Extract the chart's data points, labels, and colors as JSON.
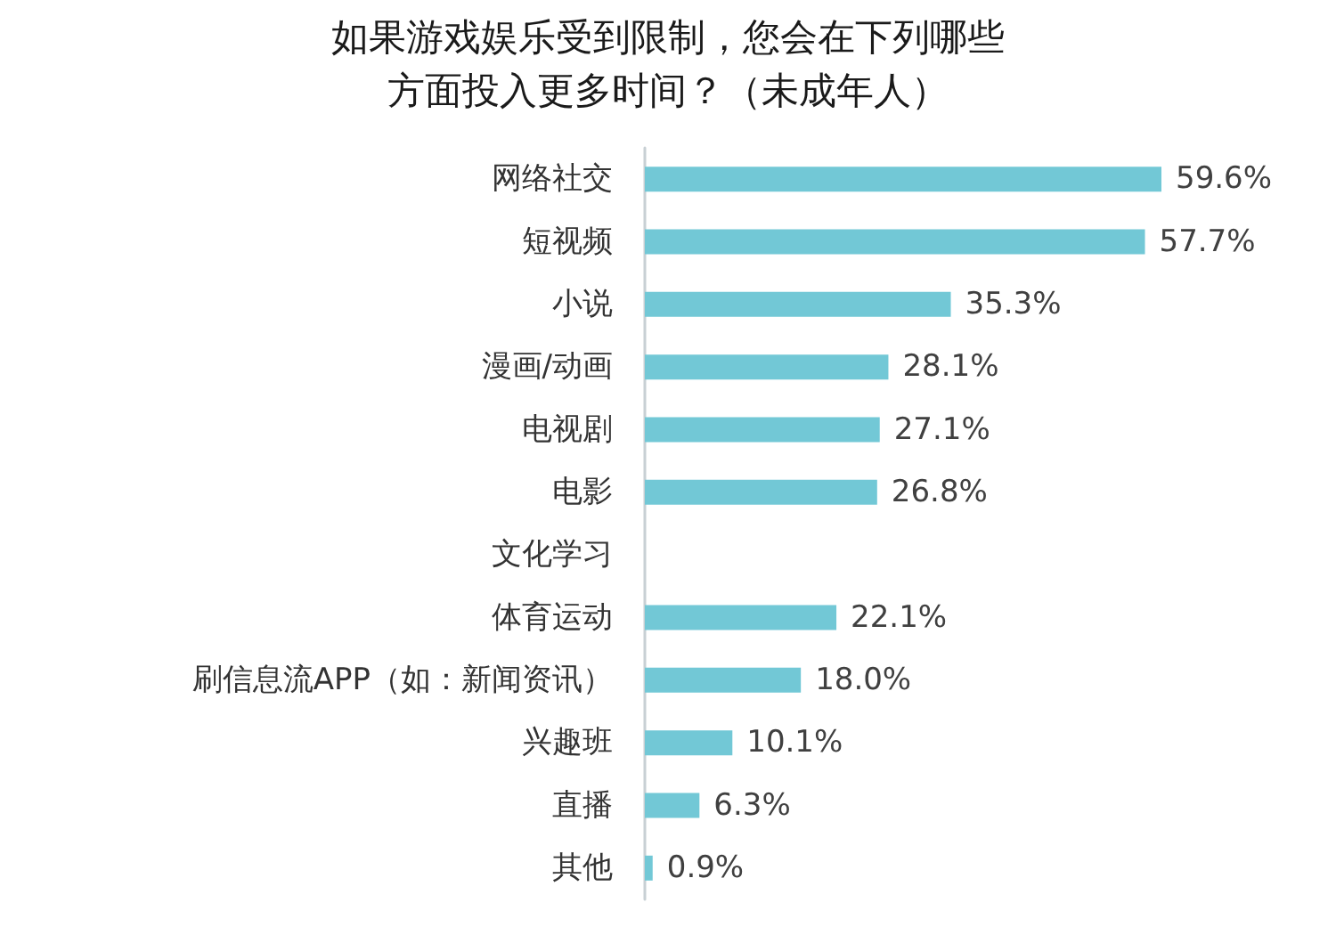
{
  "chart_data": {
    "type": "bar",
    "orientation": "horizontal",
    "title": "如果游戏娱乐受到限制，您会在下列哪些方面投入更多时间？（未成年人）",
    "categories": [
      "网络社交",
      "短视频",
      "小说",
      "漫画/动画",
      "电视剧",
      "电影",
      "文化学习",
      "体育运动",
      "刷信息流APP（如：新闻资讯）",
      "兴趣班",
      "直播",
      "其他"
    ],
    "values": [
      59.6,
      57.7,
      35.3,
      28.1,
      27.1,
      26.8,
      null,
      22.1,
      18.0,
      10.1,
      6.3,
      0.9
    ],
    "value_labels": [
      "59.6%",
      "57.7%",
      "35.3%",
      "28.1%",
      "27.1%",
      "26.8%",
      null,
      "22.1%",
      "18.0%",
      "10.1%",
      "6.3%",
      "0.9%"
    ],
    "color": "#72c8d6"
  }
}
